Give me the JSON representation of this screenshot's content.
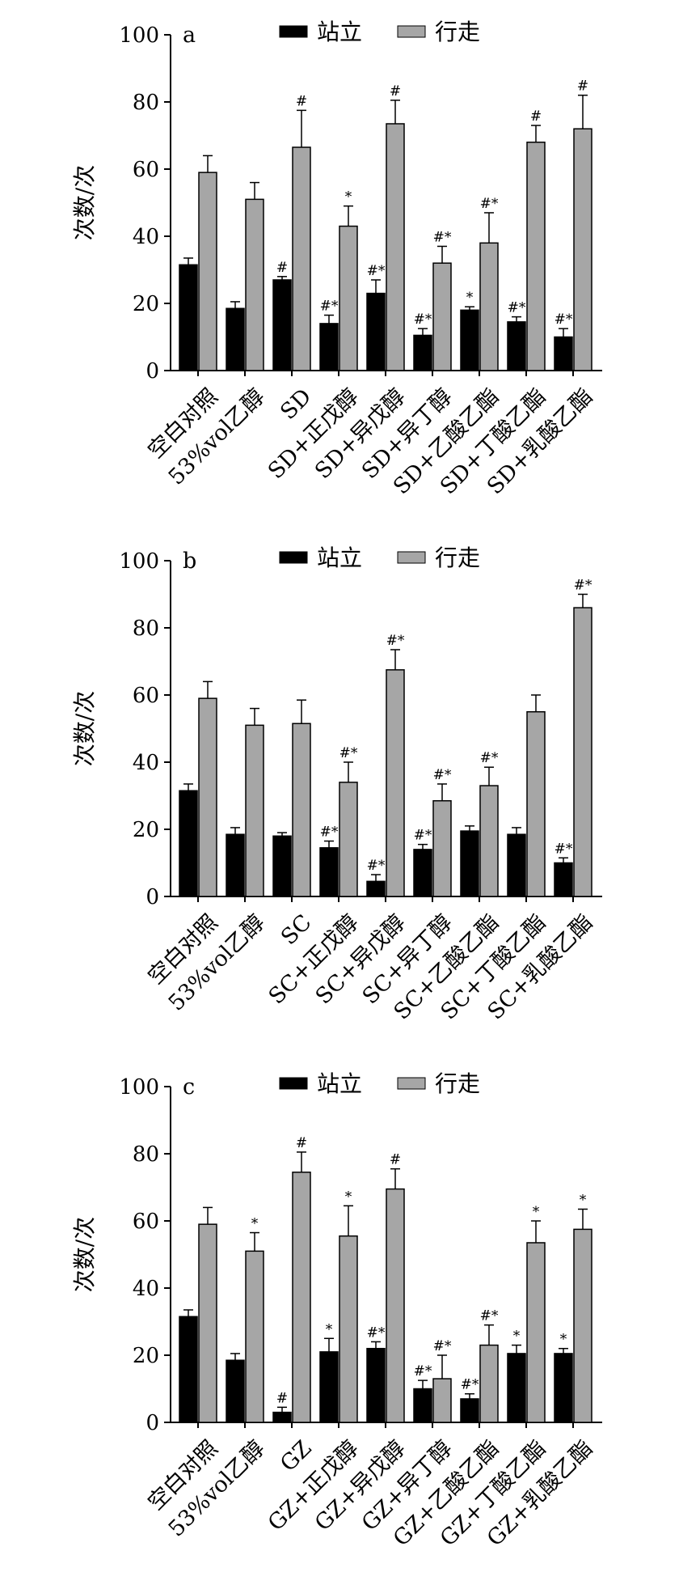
{
  "legend": {
    "standing": "站立",
    "walking": "行走"
  },
  "y_axis_label": "次数/次",
  "colors": {
    "standing": "#000000",
    "walking": "#a6a6a6",
    "axis": "#000000"
  },
  "chart_data": [
    {
      "type": "bar",
      "panel_label": "a",
      "ylabel": "次数/次",
      "ylim": [
        0,
        100
      ],
      "yticks": [
        0,
        20,
        40,
        60,
        80,
        100
      ],
      "legend_position": "top",
      "categories": [
        "空白对照",
        "53%vol乙醇",
        "SD",
        "SD+正戊醇",
        "SD+异戊醇",
        "SD+异丁醇",
        "SD+乙酸乙酯",
        "SD+丁酸乙酯",
        "SD+乳酸乙酯"
      ],
      "series": [
        {
          "name": "站立",
          "values": [
            31.5,
            18.5,
            27,
            14,
            23,
            10.5,
            18,
            14.5,
            10
          ],
          "errors": [
            2,
            2,
            1,
            2.5,
            4,
            2,
            1,
            1.5,
            2.5
          ],
          "markers": [
            "",
            "",
            "#",
            "#*",
            "#*",
            "#*",
            "*",
            "#*",
            "#*"
          ]
        },
        {
          "name": "行走",
          "values": [
            59,
            51,
            66.5,
            43,
            73.5,
            32,
            38,
            68,
            72
          ],
          "errors": [
            5,
            5,
            11,
            6,
            7,
            5,
            9,
            5,
            10
          ],
          "markers": [
            "",
            "",
            "#",
            "*",
            "#",
            "#*",
            "#*",
            "#",
            "#"
          ]
        }
      ]
    },
    {
      "type": "bar",
      "panel_label": "b",
      "ylabel": "次数/次",
      "ylim": [
        0,
        100
      ],
      "yticks": [
        0,
        20,
        40,
        60,
        80,
        100
      ],
      "legend_position": "top",
      "categories": [
        "空白对照",
        "53%vol乙醇",
        "SC",
        "SC+正戊醇",
        "SC+异戊醇",
        "SC+异丁醇",
        "SC+乙酸乙酯",
        "SC+丁酸乙酯",
        "SC+乳酸乙酯"
      ],
      "series": [
        {
          "name": "站立",
          "values": [
            31.5,
            18.5,
            18,
            14.5,
            4.5,
            14,
            19.5,
            18.5,
            10
          ],
          "errors": [
            2,
            2,
            1,
            2,
            2,
            1.5,
            1.5,
            2,
            1.5
          ],
          "markers": [
            "",
            "",
            "",
            "#*",
            "#*",
            "#*",
            "",
            "",
            "#*"
          ]
        },
        {
          "name": "行走",
          "values": [
            59,
            51,
            51.5,
            34,
            67.5,
            28.5,
            33,
            55,
            86
          ],
          "errors": [
            5,
            5,
            7,
            6,
            6,
            5,
            5.5,
            5,
            4
          ],
          "markers": [
            "",
            "",
            "",
            "#*",
            "#*",
            "#*",
            "#*",
            "",
            "#*"
          ]
        }
      ]
    },
    {
      "type": "bar",
      "panel_label": "c",
      "ylabel": "次数/次",
      "ylim": [
        0,
        100
      ],
      "yticks": [
        0,
        20,
        40,
        60,
        80,
        100
      ],
      "legend_position": "top",
      "categories": [
        "空白对照",
        "53%vol乙醇",
        "GZ",
        "GZ+正戊醇",
        "GZ+异戊醇",
        "GZ+异丁醇",
        "GZ+乙酸乙酯",
        "GZ+丁酸乙酯",
        "GZ+乳酸乙酯"
      ],
      "series": [
        {
          "name": "站立",
          "values": [
            31.5,
            18.5,
            3,
            21,
            22,
            10,
            7,
            20.5,
            20.5
          ],
          "errors": [
            2,
            2,
            1.5,
            4,
            2,
            2.5,
            1.5,
            2.5,
            1.5
          ],
          "markers": [
            "",
            "",
            "#",
            "*",
            "#*",
            "#*",
            "#*",
            "*",
            "*"
          ]
        },
        {
          "name": "行走",
          "values": [
            59,
            51,
            74.5,
            55.5,
            69.5,
            13,
            23,
            53.5,
            57.5
          ],
          "errors": [
            5,
            5.5,
            6,
            9,
            6,
            7,
            6,
            6.5,
            6
          ],
          "markers": [
            "",
            "*",
            "#",
            "*",
            "#",
            "#*",
            "#*",
            "*",
            "*"
          ]
        }
      ]
    }
  ]
}
